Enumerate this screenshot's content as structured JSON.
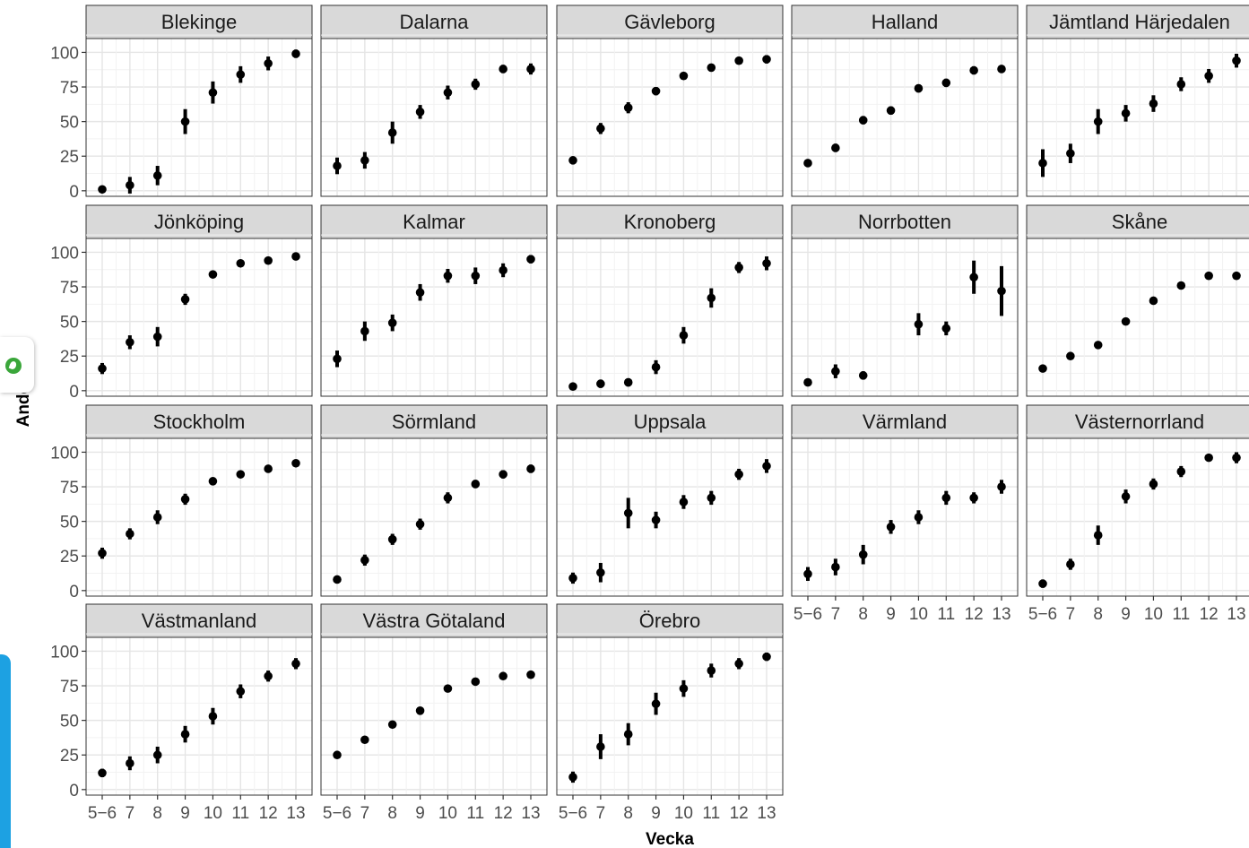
{
  "chart_data": {
    "type": "scatter",
    "xlabel": "Vecka",
    "ylabel": "Andel",
    "categories": [
      "5−6",
      "7",
      "8",
      "9",
      "10",
      "11",
      "12",
      "13"
    ],
    "yticks": [
      0,
      25,
      50,
      75,
      100
    ],
    "ylim": [
      -4,
      110
    ],
    "grid": true,
    "legend": "none",
    "panels": [
      {
        "title": "Blekinge",
        "values": [
          1,
          4,
          11,
          50,
          71,
          84,
          92,
          99
        ],
        "err": [
          2,
          6,
          7,
          9,
          8,
          6,
          5,
          3
        ]
      },
      {
        "title": "Dalarna",
        "values": [
          18,
          22,
          42,
          57,
          71,
          77,
          88,
          88
        ],
        "err": [
          6,
          6,
          8,
          5,
          5,
          4,
          3,
          4
        ]
      },
      {
        "title": "Gävleborg",
        "values": [
          22,
          45,
          60,
          72,
          83,
          89,
          94,
          95
        ],
        "err": [
          2,
          4,
          4,
          3,
          2,
          2,
          2,
          3
        ]
      },
      {
        "title": "Halland",
        "values": [
          20,
          31,
          51,
          58,
          74,
          78,
          87,
          88
        ],
        "err": [
          2,
          3,
          3,
          3,
          3,
          3,
          3,
          2
        ]
      },
      {
        "title": "Jämtland Härjedalen",
        "values": [
          20,
          27,
          50,
          56,
          63,
          77,
          83,
          94
        ],
        "err": [
          10,
          7,
          9,
          6,
          6,
          5,
          5,
          5
        ]
      },
      {
        "title": "Jönköping",
        "values": [
          16,
          35,
          39,
          66,
          84,
          92,
          94,
          97
        ],
        "err": [
          4,
          5,
          7,
          4,
          2,
          2,
          2,
          2
        ]
      },
      {
        "title": "Kalmar",
        "values": [
          23,
          43,
          49,
          71,
          83,
          83,
          87,
          95
        ],
        "err": [
          6,
          7,
          6,
          6,
          5,
          6,
          5,
          3
        ]
      },
      {
        "title": "Kronoberg",
        "values": [
          3,
          5,
          6,
          17,
          40,
          67,
          89,
          92
        ],
        "err": [
          2,
          3,
          3,
          5,
          6,
          7,
          4,
          5
        ]
      },
      {
        "title": "Norrbotten",
        "values": [
          6,
          14,
          11,
          null,
          48,
          45,
          82,
          72
        ],
        "err": [
          2,
          5,
          3,
          null,
          8,
          5,
          12,
          18
        ]
      },
      {
        "title": "Skåne",
        "values": [
          16,
          25,
          33,
          50,
          65,
          76,
          83,
          83
        ],
        "err": [
          2,
          2,
          2,
          2,
          2,
          2,
          2,
          2
        ]
      },
      {
        "title": "Stockholm",
        "values": [
          27,
          41,
          53,
          66,
          79,
          84,
          88,
          92
        ],
        "err": [
          4,
          4,
          5,
          4,
          2,
          2,
          2,
          2
        ]
      },
      {
        "title": "Sörmland",
        "values": [
          8,
          22,
          37,
          48,
          67,
          77,
          84,
          88
        ],
        "err": [
          2,
          4,
          4,
          4,
          4,
          3,
          3,
          3
        ]
      },
      {
        "title": "Uppsala",
        "values": [
          9,
          13,
          56,
          51,
          64,
          67,
          84,
          90
        ],
        "err": [
          4,
          7,
          11,
          6,
          5,
          5,
          4,
          5
        ]
      },
      {
        "title": "Värmland",
        "values": [
          12,
          17,
          26,
          46,
          53,
          67,
          67,
          75
        ],
        "err": [
          5,
          6,
          7,
          5,
          5,
          5,
          4,
          5
        ]
      },
      {
        "title": "Västernorrland",
        "values": [
          5,
          19,
          40,
          68,
          77,
          86,
          96,
          96
        ],
        "err": [
          3,
          4,
          7,
          5,
          4,
          4,
          2,
          4
        ]
      },
      {
        "title": "Västmanland",
        "values": [
          12,
          19,
          25,
          40,
          53,
          71,
          82,
          91
        ],
        "err": [
          3,
          5,
          6,
          6,
          6,
          5,
          4,
          4
        ]
      },
      {
        "title": "Västra Götaland",
        "values": [
          25,
          36,
          47,
          57,
          73,
          78,
          82,
          83
        ],
        "err": [
          2,
          2,
          2,
          2,
          2,
          2,
          2,
          2
        ]
      },
      {
        "title": "Örebro",
        "values": [
          9,
          31,
          40,
          62,
          73,
          86,
          91,
          96
        ],
        "err": [
          4,
          9,
          8,
          8,
          6,
          5,
          4,
          3
        ]
      }
    ]
  }
}
